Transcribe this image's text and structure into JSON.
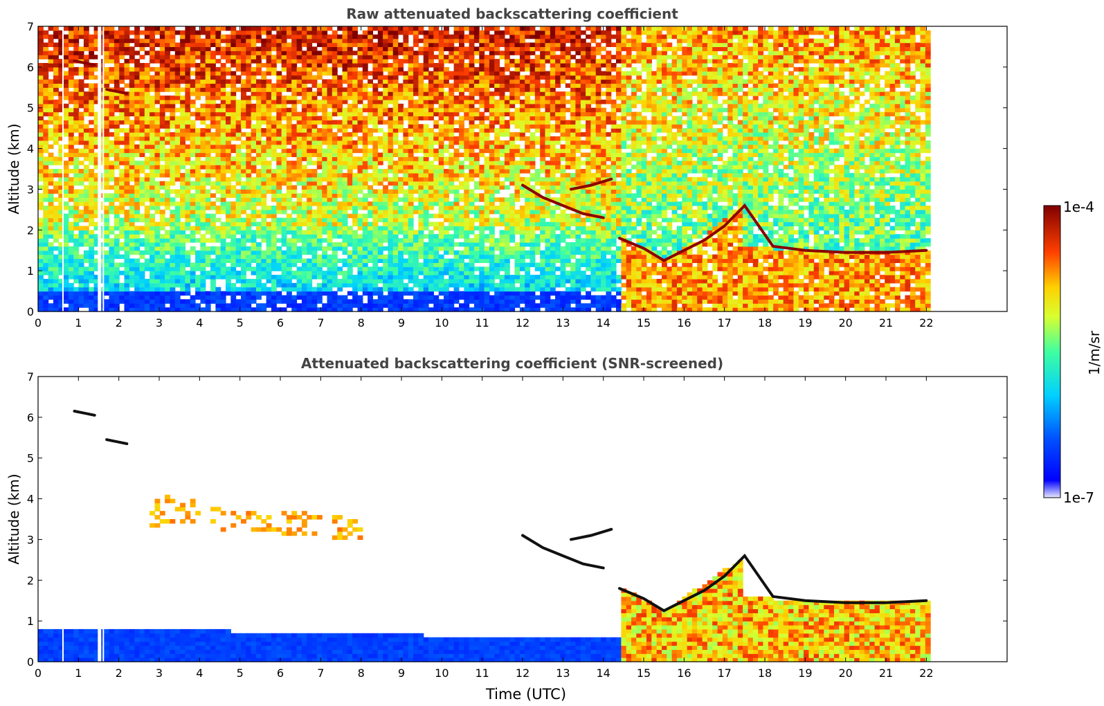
{
  "chart_data": [
    {
      "type": "heatmap",
      "title": "Raw attenuated backscattering coefficient",
      "xlabel": "",
      "ylabel": "Altitude (km)",
      "xlim": [
        0,
        24
      ],
      "ylim": [
        0,
        7
      ],
      "xticks": [
        "0",
        "1",
        "2",
        "3",
        "4",
        "5",
        "6",
        "7",
        "8",
        "9",
        "10",
        "11",
        "12",
        "13",
        "14",
        "15",
        "16",
        "17",
        "18",
        "19",
        "20",
        "21",
        "22"
      ],
      "yticks": [
        "0",
        "1",
        "2",
        "3",
        "4",
        "5",
        "6",
        "7"
      ],
      "data_end_hour": 22.1,
      "features": [
        {
          "kind": "cloud_base_line",
          "points": [
            [
              14.4,
              1.8
            ],
            [
              15.0,
              1.55
            ],
            [
              15.5,
              1.25
            ],
            [
              16.0,
              1.5
            ],
            [
              16.5,
              1.75
            ],
            [
              17.0,
              2.1
            ],
            [
              17.5,
              2.6
            ],
            [
              18.2,
              1.6
            ],
            [
              19.0,
              1.5
            ],
            [
              20.0,
              1.45
            ],
            [
              21.0,
              1.45
            ],
            [
              22.0,
              1.5
            ]
          ]
        },
        {
          "kind": "elevated_layer",
          "points": [
            [
              12.0,
              3.1
            ],
            [
              12.5,
              2.8
            ],
            [
              13.0,
              2.6
            ],
            [
              13.5,
              2.4
            ],
            [
              14.0,
              2.3
            ]
          ]
        },
        {
          "kind": "elevated_layer",
          "points": [
            [
              13.2,
              3.0
            ],
            [
              13.7,
              3.1
            ],
            [
              14.2,
              3.25
            ]
          ]
        },
        {
          "kind": "high_cloud",
          "points": [
            [
              0.9,
              6.15
            ],
            [
              1.4,
              6.05
            ]
          ]
        },
        {
          "kind": "high_cloud",
          "points": [
            [
              1.7,
              5.45
            ],
            [
              2.2,
              5.35
            ]
          ]
        }
      ]
    },
    {
      "type": "heatmap",
      "title": "Attenuated backscattering coefficient (SNR-screened)",
      "xlabel": "Time (UTC)",
      "ylabel": "Altitude (km)",
      "xlim": [
        0,
        24
      ],
      "ylim": [
        0,
        7
      ],
      "xticks": [
        "0",
        "1",
        "2",
        "3",
        "4",
        "5",
        "6",
        "7",
        "8",
        "9",
        "10",
        "11",
        "12",
        "13",
        "14",
        "15",
        "16",
        "17",
        "18",
        "19",
        "20",
        "21",
        "22"
      ],
      "yticks": [
        "0",
        "1",
        "2",
        "3",
        "4",
        "5",
        "6",
        "7"
      ],
      "data_end_hour": 22.1
    }
  ],
  "colorbar": {
    "label": "1/m/sr",
    "max_label": "1e-4",
    "min_label": "1e-7",
    "scale": "log",
    "range": [
      1e-07,
      0.0001
    ]
  }
}
